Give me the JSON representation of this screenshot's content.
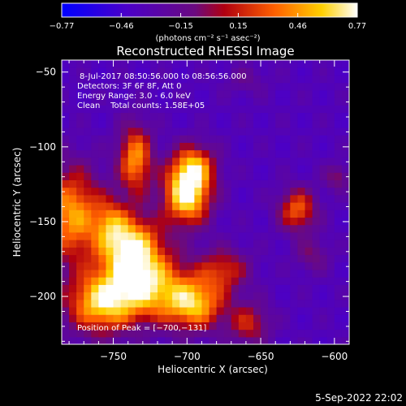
{
  "chart_data": {
    "type": "heatmap",
    "title": "Reconstructed RHESSI Image",
    "xlabel": "Heliocentric X (arcsec)",
    "ylabel": "Heliocentric Y (arcsec)",
    "xlim": [
      -785,
      -590
    ],
    "ylim": [
      -232,
      -42
    ],
    "x_ticks": [
      -750,
      -700,
      -650,
      -600
    ],
    "x_tick_labels": [
      "−750",
      "−700",
      "−650",
      "−600"
    ],
    "y_ticks": [
      -50,
      -100,
      -150,
      -200
    ],
    "y_tick_labels": [
      "−50",
      "−100",
      "−150",
      "−200"
    ],
    "colorbar": {
      "min": -0.77,
      "max": 0.77,
      "ticks": [
        -0.77,
        -0.46,
        -0.15,
        0.15,
        0.46,
        0.77
      ],
      "tick_labels": [
        "−0.77",
        "−0.46",
        "−0.15",
        "0.15",
        "0.46",
        "0.77"
      ],
      "units": "(photons cm⁻² s⁻¹ asec⁻²)"
    },
    "annotations": [
      "8-Jul-2017 08:50:56.000 to 08:56:56.000",
      "Detectors: 3F 6F 8F, Att 0",
      "Energy Range: 3.0 - 6.0 keV",
      "Clean    Total counts: 1.58E+05"
    ],
    "peak_label": "Position of Peak = [−700,−131]",
    "sources": [
      {
        "x": -700,
        "y": -131,
        "sx": 11,
        "sy": 14,
        "amp": 1.0
      },
      {
        "x": -695,
        "y": -112,
        "sx": 10,
        "sy": 10,
        "amp": 0.55
      },
      {
        "x": -735,
        "y": -108,
        "sx": 8,
        "sy": 16,
        "amp": 0.7
      },
      {
        "x": -778,
        "y": -145,
        "sx": 14,
        "sy": 22,
        "amp": 0.72
      },
      {
        "x": -752,
        "y": -150,
        "sx": 8,
        "sy": 12,
        "amp": 0.4
      },
      {
        "x": -738,
        "y": -165,
        "sx": 14,
        "sy": 14,
        "amp": 0.8
      },
      {
        "x": -730,
        "y": -192,
        "sx": 20,
        "sy": 16,
        "amp": 0.85
      },
      {
        "x": -760,
        "y": -205,
        "sx": 16,
        "sy": 14,
        "amp": 0.7
      },
      {
        "x": -695,
        "y": -205,
        "sx": 14,
        "sy": 12,
        "amp": 0.75
      },
      {
        "x": -675,
        "y": -182,
        "sx": 12,
        "sy": 10,
        "amp": 0.45
      },
      {
        "x": -658,
        "y": -218,
        "sx": 10,
        "sy": 10,
        "amp": 0.42
      },
      {
        "x": -625,
        "y": -142,
        "sx": 9,
        "sy": 10,
        "amp": 0.58
      },
      {
        "x": -615,
        "y": -172,
        "sx": 8,
        "sy": 8,
        "amp": 0.25
      },
      {
        "x": -598,
        "y": -120,
        "sx": 6,
        "sy": 6,
        "amp": 0.3
      },
      {
        "x": -660,
        "y": -55,
        "sx": 10,
        "sy": 7,
        "amp": 0.15
      }
    ],
    "background": -0.35
  },
  "footer": {
    "timestamp": "5-Sep-2022 22:02"
  }
}
